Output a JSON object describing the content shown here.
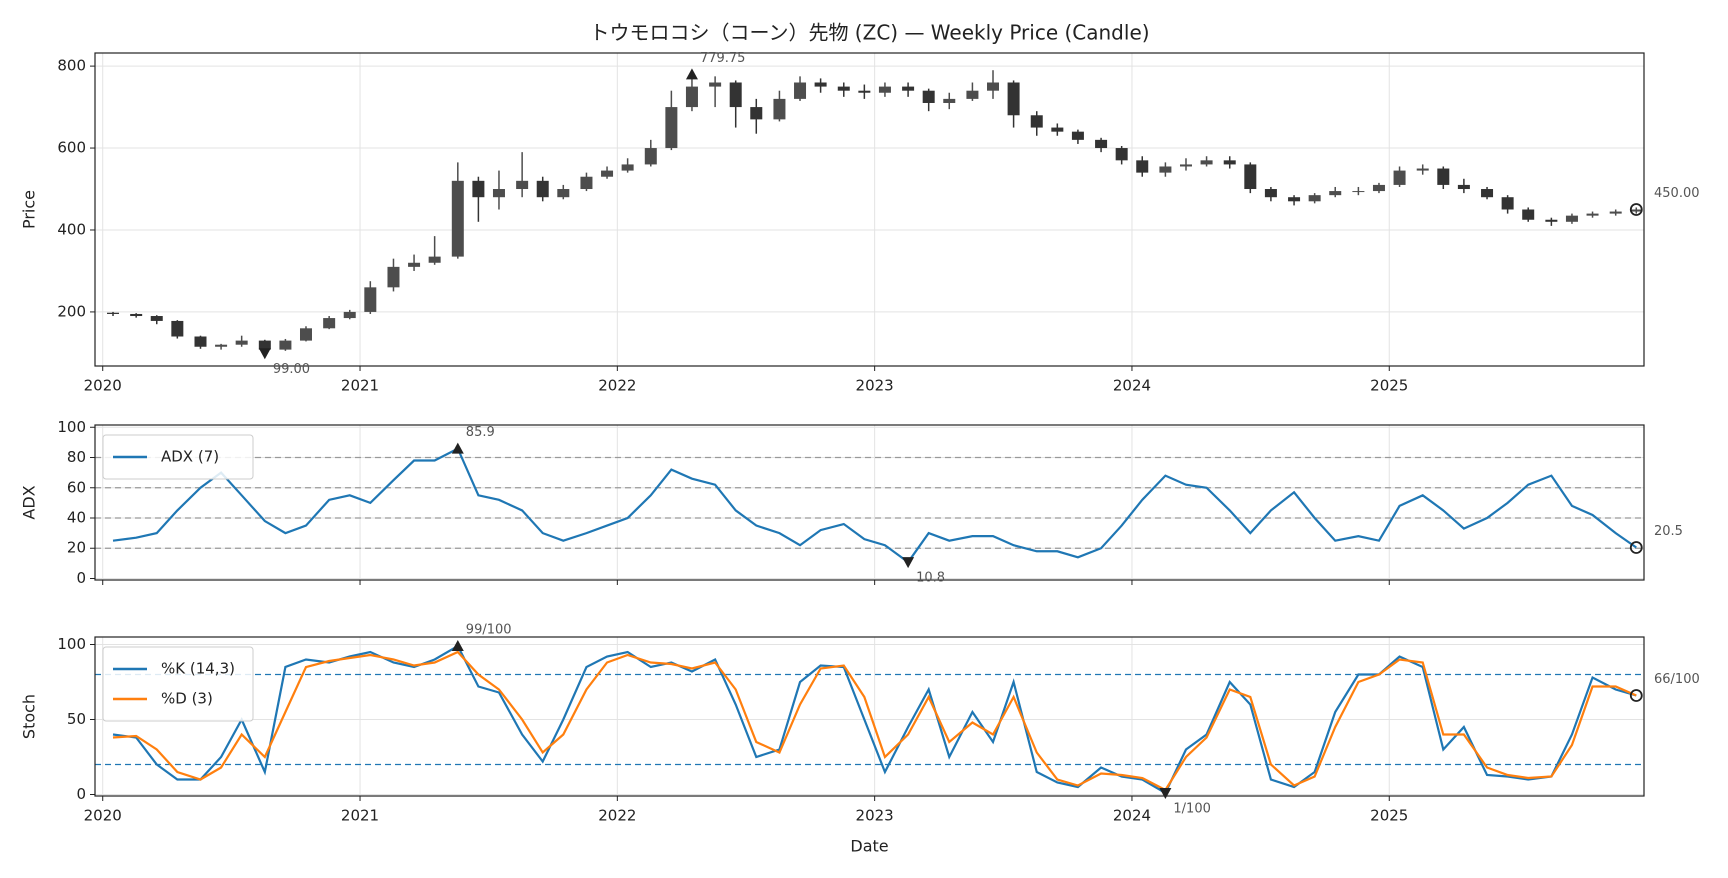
{
  "chart_data": [
    {
      "type": "candlestick",
      "title": "トウモロコシ（コーン）先物 (ZC) — Weekly Price (Candle)",
      "ylabel": "Price",
      "x": [
        2020.04,
        2020.13,
        2020.21,
        2020.29,
        2020.38,
        2020.46,
        2020.54,
        2020.63,
        2020.71,
        2020.79,
        2020.88,
        2020.96,
        2021.04,
        2021.13,
        2021.21,
        2021.29,
        2021.38,
        2021.46,
        2021.54,
        2021.63,
        2021.71,
        2021.79,
        2021.88,
        2021.96,
        2022.04,
        2022.13,
        2022.21,
        2022.29,
        2022.38,
        2022.46,
        2022.54,
        2022.63,
        2022.71,
        2022.79,
        2022.88,
        2022.96,
        2023.04,
        2023.13,
        2023.21,
        2023.29,
        2023.38,
        2023.46,
        2023.54,
        2023.63,
        2023.71,
        2023.79,
        2023.88,
        2023.96,
        2024.04,
        2024.13,
        2024.21,
        2024.29,
        2024.38,
        2024.46,
        2024.54,
        2024.63,
        2024.71,
        2024.79,
        2024.88,
        2024.96,
        2025.04,
        2025.13,
        2025.21,
        2025.29,
        2025.38,
        2025.46,
        2025.54,
        2025.63,
        2025.71,
        2025.79,
        2025.88,
        2025.96
      ],
      "open": [
        198,
        195,
        190,
        178,
        140,
        115,
        120,
        130,
        108,
        130,
        160,
        185,
        200,
        260,
        310,
        320,
        335,
        520,
        480,
        500,
        520,
        480,
        500,
        530,
        545,
        560,
        600,
        700,
        750,
        760,
        700,
        670,
        720,
        760,
        750,
        740,
        735,
        750,
        740,
        710,
        720,
        740,
        760,
        680,
        650,
        640,
        620,
        600,
        570,
        540,
        555,
        560,
        570,
        560,
        500,
        480,
        470,
        485,
        495,
        495,
        510,
        545,
        550,
        510,
        500,
        480,
        450,
        425,
        420,
        435,
        440,
        445
      ],
      "high": [
        200,
        197,
        192,
        180,
        142,
        122,
        142,
        132,
        134,
        165,
        190,
        205,
        275,
        330,
        340,
        385,
        565,
        530,
        545,
        590,
        530,
        510,
        540,
        555,
        575,
        620,
        740,
        779.75,
        775,
        765,
        720,
        740,
        775,
        770,
        760,
        755,
        760,
        760,
        745,
        735,
        760,
        790,
        765,
        690,
        660,
        645,
        625,
        605,
        580,
        565,
        575,
        580,
        580,
        565,
        505,
        485,
        490,
        505,
        505,
        515,
        555,
        560,
        555,
        525,
        505,
        485,
        455,
        430,
        440,
        445,
        450,
        455
      ],
      "low": [
        190,
        186,
        170,
        135,
        110,
        108,
        115,
        99,
        105,
        128,
        158,
        182,
        195,
        250,
        300,
        315,
        330,
        420,
        450,
        480,
        470,
        475,
        495,
        525,
        540,
        555,
        595,
        690,
        700,
        650,
        635,
        665,
        715,
        735,
        725,
        720,
        725,
        725,
        690,
        695,
        715,
        720,
        650,
        630,
        630,
        610,
        590,
        560,
        530,
        530,
        545,
        555,
        550,
        490,
        470,
        460,
        465,
        480,
        485,
        490,
        505,
        535,
        500,
        490,
        475,
        440,
        420,
        410,
        415,
        430,
        435,
        440
      ],
      "close": [
        195,
        190,
        178,
        140,
        115,
        120,
        130,
        108,
        130,
        160,
        185,
        200,
        260,
        310,
        320,
        335,
        520,
        480,
        500,
        520,
        480,
        500,
        530,
        545,
        560,
        600,
        700,
        750,
        760,
        700,
        670,
        720,
        760,
        750,
        740,
        735,
        750,
        740,
        710,
        720,
        740,
        760,
        680,
        650,
        640,
        620,
        600,
        570,
        540,
        555,
        560,
        570,
        560,
        500,
        480,
        470,
        485,
        495,
        495,
        510,
        545,
        550,
        510,
        500,
        480,
        450,
        425,
        420,
        435,
        440,
        445,
        450
      ],
      "up_color": "#4d4d4d",
      "down_color": "#333333",
      "xlim": [
        2019.97,
        2025.99
      ],
      "xticks": [
        2020,
        2021,
        2022,
        2023,
        2024,
        2025
      ],
      "show_xtick_labels": true,
      "ylim": [
        68,
        832
      ],
      "yticks": [
        200,
        400,
        600,
        800
      ],
      "grid": true,
      "annotations": [
        {
          "x": 2022.29,
          "value": 779.75,
          "label": "779.75",
          "marker": "up"
        },
        {
          "x": 2020.63,
          "value": 99,
          "label": "99.00",
          "marker": "down"
        },
        {
          "x": 2025.96,
          "value": 450,
          "label": "450.00",
          "marker": "last"
        }
      ]
    },
    {
      "type": "line",
      "ylabel": "ADX",
      "legend": "upper left",
      "x": [
        2020.04,
        2020.13,
        2020.21,
        2020.29,
        2020.38,
        2020.46,
        2020.54,
        2020.63,
        2020.71,
        2020.79,
        2020.88,
        2020.96,
        2021.04,
        2021.13,
        2021.21,
        2021.29,
        2021.38,
        2021.46,
        2021.54,
        2021.63,
        2021.71,
        2021.79,
        2021.88,
        2021.96,
        2022.04,
        2022.13,
        2022.21,
        2022.29,
        2022.38,
        2022.46,
        2022.54,
        2022.63,
        2022.71,
        2022.79,
        2022.88,
        2022.96,
        2023.04,
        2023.13,
        2023.21,
        2023.29,
        2023.38,
        2023.46,
        2023.54,
        2023.63,
        2023.71,
        2023.79,
        2023.88,
        2023.96,
        2024.04,
        2024.13,
        2024.21,
        2024.29,
        2024.38,
        2024.46,
        2024.54,
        2024.63,
        2024.71,
        2024.79,
        2024.88,
        2024.96,
        2025.04,
        2025.13,
        2025.21,
        2025.29,
        2025.38,
        2025.46,
        2025.54,
        2025.63,
        2025.71,
        2025.79,
        2025.88,
        2025.96
      ],
      "series": [
        {
          "name": "ADX (7)",
          "color": "#1f77b4",
          "values": [
            25,
            27,
            30,
            45,
            60,
            70,
            55,
            38,
            30,
            35,
            52,
            55,
            50,
            65,
            78,
            78,
            85.9,
            55,
            52,
            45,
            30,
            25,
            30,
            35,
            40,
            55,
            72,
            66,
            62,
            45,
            35,
            30,
            22,
            32,
            36,
            26,
            22,
            10.8,
            30,
            25,
            28,
            28,
            22,
            18,
            18,
            14,
            20,
            35,
            52,
            68,
            62,
            60,
            45,
            30,
            45,
            57,
            40,
            25,
            28,
            25,
            48,
            55,
            45,
            33,
            40,
            50,
            62,
            68,
            48,
            42,
            30,
            20.5
          ]
        }
      ],
      "hlines": [
        20,
        40,
        60,
        80
      ],
      "hline_color": "#999999",
      "xlim": [
        2019.97,
        2025.99
      ],
      "xticks": [
        2020,
        2021,
        2022,
        2023,
        2024,
        2025
      ],
      "show_xtick_labels": false,
      "ylim": [
        -1,
        101.5
      ],
      "yticks": [
        0,
        20,
        40,
        60,
        80,
        100
      ],
      "grid": true,
      "annotations": [
        {
          "x": 2021.38,
          "value": 85.9,
          "label": "85.9",
          "marker": "up"
        },
        {
          "x": 2023.13,
          "value": 10.8,
          "label": "10.8",
          "marker": "down"
        },
        {
          "x": 2025.96,
          "value": 20.5,
          "label": "20.5",
          "marker": "last"
        }
      ]
    },
    {
      "type": "line",
      "ylabel": "Stoch",
      "xlabel": "Date",
      "legend": "upper left",
      "x": [
        2020.04,
        2020.13,
        2020.21,
        2020.29,
        2020.38,
        2020.46,
        2020.54,
        2020.63,
        2020.71,
        2020.79,
        2020.88,
        2020.96,
        2021.04,
        2021.13,
        2021.21,
        2021.29,
        2021.38,
        2021.46,
        2021.54,
        2021.63,
        2021.71,
        2021.79,
        2021.88,
        2021.96,
        2022.04,
        2022.13,
        2022.21,
        2022.29,
        2022.38,
        2022.46,
        2022.54,
        2022.63,
        2022.71,
        2022.79,
        2022.88,
        2022.96,
        2023.04,
        2023.13,
        2023.21,
        2023.29,
        2023.38,
        2023.46,
        2023.54,
        2023.63,
        2023.71,
        2023.79,
        2023.88,
        2023.96,
        2024.04,
        2024.13,
        2024.21,
        2024.29,
        2024.38,
        2024.46,
        2024.54,
        2024.63,
        2024.71,
        2024.79,
        2024.88,
        2024.96,
        2025.04,
        2025.13,
        2025.21,
        2025.29,
        2025.38,
        2025.46,
        2025.54,
        2025.63,
        2025.71,
        2025.79,
        2025.88,
        2025.96
      ],
      "series": [
        {
          "name": "%K (14,3)",
          "color": "#1f77b4",
          "values": [
            40,
            38,
            20,
            10,
            10,
            25,
            50,
            15,
            85,
            90,
            88,
            92,
            95,
            88,
            85,
            90,
            99,
            72,
            68,
            40,
            22,
            50,
            85,
            92,
            95,
            85,
            88,
            82,
            90,
            60,
            25,
            30,
            75,
            86,
            85,
            50,
            15,
            45,
            70,
            25,
            55,
            35,
            75,
            15,
            8,
            5,
            18,
            12,
            10,
            1,
            30,
            40,
            75,
            60,
            10,
            5,
            15,
            55,
            80,
            80,
            92,
            85,
            30,
            45,
            13,
            12,
            10,
            12,
            40,
            78,
            70,
            66
          ]
        },
        {
          "name": "%D (3)",
          "color": "#ff7f0e",
          "values": [
            38,
            39,
            30,
            15,
            10,
            18,
            40,
            25,
            55,
            85,
            89,
            91,
            93,
            90,
            86,
            88,
            95,
            80,
            70,
            50,
            28,
            40,
            70,
            88,
            93,
            88,
            87,
            84,
            88,
            70,
            35,
            28,
            60,
            84,
            86,
            65,
            25,
            40,
            65,
            35,
            48,
            40,
            65,
            28,
            10,
            6,
            14,
            13,
            11,
            3,
            25,
            38,
            70,
            65,
            20,
            6,
            12,
            45,
            75,
            80,
            90,
            88,
            40,
            40,
            18,
            13,
            11,
            12,
            33,
            72,
            72,
            66
          ]
        }
      ],
      "hlines": [
        20,
        80
      ],
      "hline_color": "#1f77b4",
      "xlim": [
        2019.97,
        2025.99
      ],
      "xticks": [
        2020,
        2021,
        2022,
        2023,
        2024,
        2025
      ],
      "show_xtick_labels": true,
      "ylim": [
        -1,
        105
      ],
      "yticks": [
        0,
        50,
        100
      ],
      "grid": true,
      "annotations": [
        {
          "x": 2021.38,
          "value": 99,
          "label": "99/100",
          "marker": "up"
        },
        {
          "x": 2024.13,
          "value": 1,
          "label": "1/100",
          "marker": "down"
        },
        {
          "x": 2025.96,
          "value": 66,
          "label": "66/100",
          "marker": "last"
        }
      ]
    }
  ]
}
